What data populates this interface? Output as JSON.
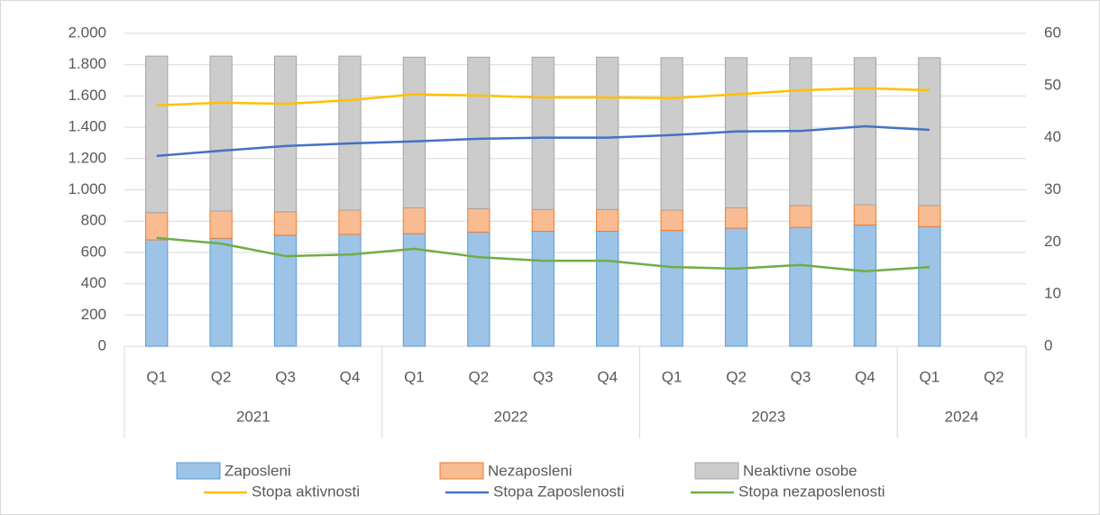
{
  "chart_data": {
    "type": "combo",
    "category_groups": [
      {
        "name": "2021",
        "categories": [
          "Q1",
          "Q2",
          "Q3",
          "Q4"
        ]
      },
      {
        "name": "2022",
        "categories": [
          "Q1",
          "Q2",
          "Q3",
          "Q4"
        ]
      },
      {
        "name": "2023",
        "categories": [
          "Q1",
          "Q2",
          "Q3",
          "Q4"
        ]
      },
      {
        "name": "2024",
        "categories": [
          "Q1",
          "Q2"
        ]
      }
    ],
    "series": [
      {
        "name": "Zaposleni",
        "type": "bar",
        "color": "#9dc3e6",
        "stroke": "#5b9bd5",
        "values": [
          680,
          690,
          710,
          715,
          720,
          730,
          735,
          735,
          740,
          755,
          760,
          775,
          765,
          null
        ]
      },
      {
        "name": "Nezaposleni",
        "type": "bar",
        "color": "#f8bb92",
        "stroke": "#ed7d31",
        "values": [
          175,
          175,
          150,
          155,
          165,
          150,
          140,
          140,
          130,
          130,
          140,
          130,
          135,
          null
        ]
      },
      {
        "name": "Neaktivne osobe",
        "type": "bar",
        "color": "#cccccc",
        "stroke": "#a5a5a5",
        "values": [
          1000,
          990,
          995,
          985,
          963,
          968,
          973,
          973,
          975,
          960,
          945,
          940,
          945,
          null
        ]
      },
      {
        "name": "Stopa aktivnosti",
        "type": "line",
        "axis": "y2",
        "color": "#ffc000",
        "values": [
          46.2,
          46.7,
          46.5,
          47.2,
          48.3,
          48.1,
          47.7,
          47.7,
          47.6,
          48.3,
          49.1,
          49.5,
          49.1,
          null
        ]
      },
      {
        "name": "Stopa Zaposlenosti",
        "type": "line",
        "axis": "y2",
        "color": "#4472c4",
        "values": [
          36.5,
          37.5,
          38.4,
          38.9,
          39.3,
          39.8,
          40.0,
          40.0,
          40.5,
          41.2,
          41.3,
          42.2,
          41.5,
          null
        ]
      },
      {
        "name": "Stopa nezaposlenosti",
        "type": "line",
        "axis": "y2",
        "color": "#70ad47",
        "values": [
          20.8,
          19.7,
          17.3,
          17.6,
          18.7,
          17.1,
          16.4,
          16.4,
          15.2,
          14.9,
          15.6,
          14.4,
          15.2,
          null
        ]
      }
    ],
    "ylim": [
      0,
      2000
    ],
    "yticks": [
      0,
      200,
      400,
      600,
      800,
      {
        "value": 1000,
        "label": "1.000"
      },
      {
        "value": 1200,
        "label": "1.200"
      },
      {
        "value": 1400,
        "label": "1.400"
      },
      {
        "value": 1600,
        "label": "1.600"
      },
      {
        "value": 1800,
        "label": "1.800"
      },
      {
        "value": 2000,
        "label": "2.000"
      }
    ],
    "y2lim": [
      0,
      60
    ],
    "y2ticks": [
      0,
      10,
      20,
      30,
      40,
      50,
      60
    ],
    "grid": true,
    "legend": "bottom"
  }
}
